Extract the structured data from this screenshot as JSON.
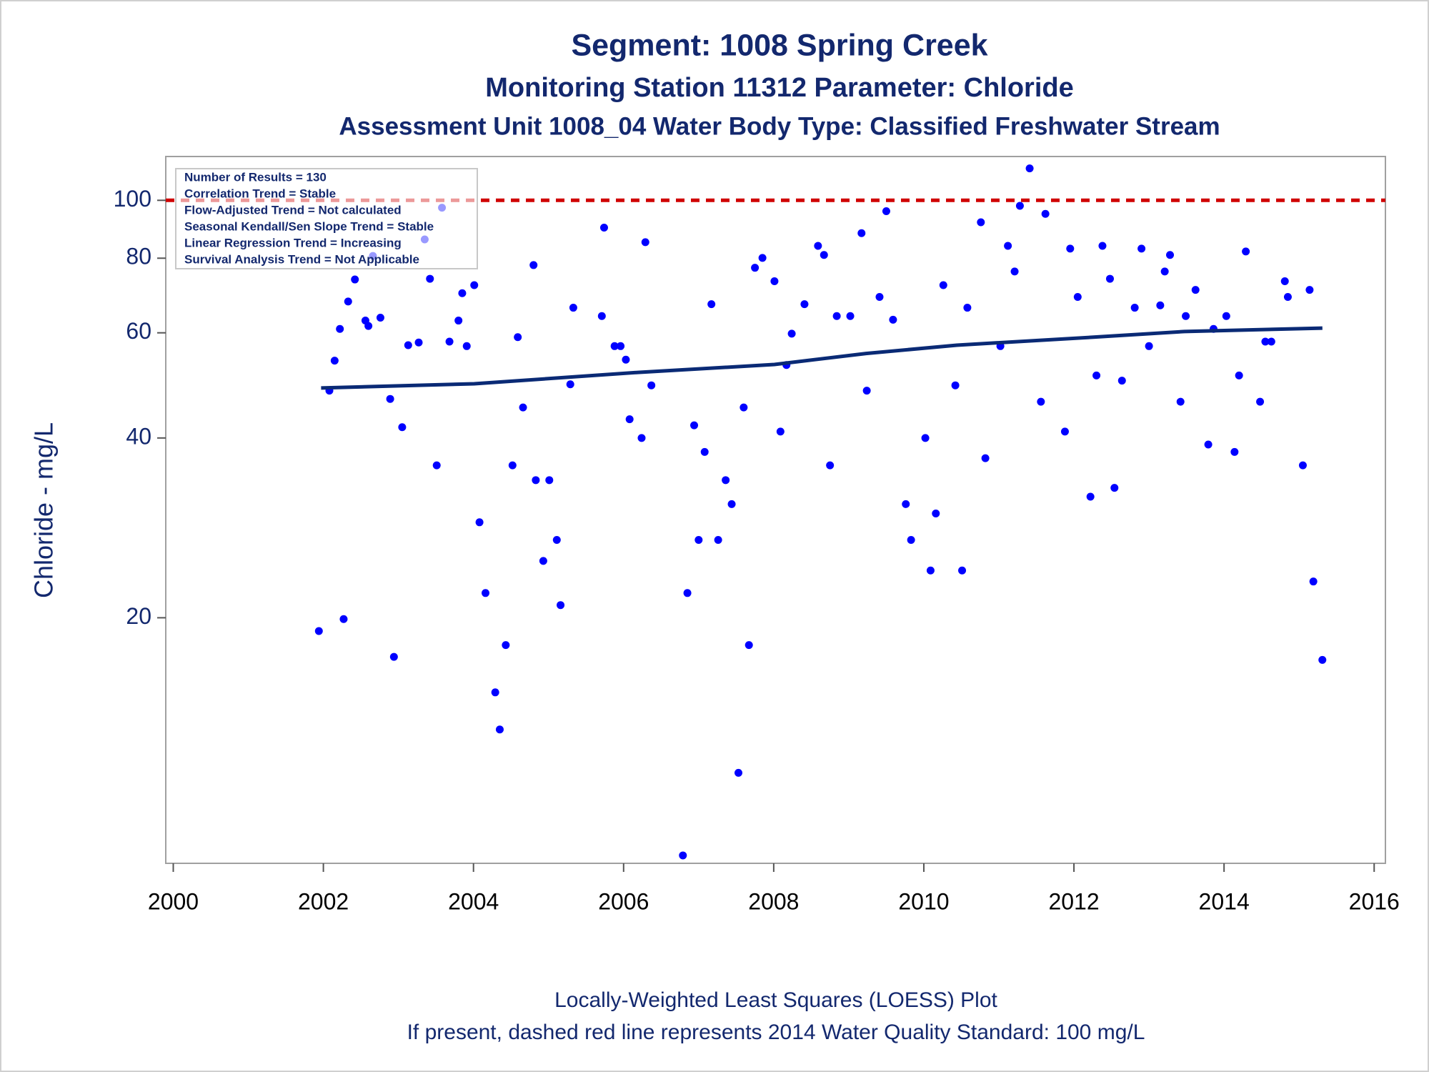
{
  "chart_data": {
    "type": "scatter",
    "title": "Segment: 1008  Spring Creek",
    "subtitles": [
      "Monitoring Station 11312 Parameter: Chloride",
      "Assessment Unit 1008_04   Water Body Type: Classified Freshwater Stream"
    ],
    "y_label": "Chloride - mg/L",
    "footnotes": [
      "Locally-Weighted Least Squares (LOESS) Plot",
      "If present, dashed red line represents 2014 Water Quality Standard: 100    mg/L"
    ],
    "stats": [
      "Number of Results = 130",
      "Correlation Trend = Stable",
      "Flow-Adjusted Trend = Not calculated",
      "Seasonal Kendall/Sen Slope Trend = Stable",
      "Linear Regression Trend = Increasing",
      "Survival Analysis Trend = Not Applicable"
    ],
    "log_y": true,
    "xlim": [
      1999.9,
      2016.15
    ],
    "ylim": [
      7.76,
      118.4
    ],
    "xticks": [
      2000,
      2002,
      2004,
      2006,
      2008,
      2010,
      2012,
      2014,
      2016
    ],
    "yticks": [
      20,
      40,
      60,
      80,
      100
    ],
    "color": "#0000ff",
    "x": [
      2001.94,
      2002.08,
      2002.15,
      2002.22,
      2002.27,
      2002.33,
      2002.42,
      2002.56,
      2002.6,
      2002.66,
      2002.76,
      2002.89,
      2002.94,
      2003.05,
      2003.13,
      2003.27,
      2003.35,
      2003.42,
      2003.51,
      2003.58,
      2003.68,
      2003.8,
      2003.85,
      2003.91,
      2004.01,
      2004.08,
      2004.16,
      2004.29,
      2004.35,
      2004.43,
      2004.52,
      2004.59,
      2004.66,
      2004.8,
      2004.83,
      2004.93,
      2005.01,
      2005.11,
      2005.16,
      2005.29,
      2005.33,
      2005.71,
      2005.74,
      2005.88,
      2005.96,
      2006.03,
      2006.08,
      2006.24,
      2006.29,
      2006.37,
      2006.79,
      2006.85,
      2006.94,
      2007.0,
      2007.08,
      2007.17,
      2007.26,
      2007.36,
      2007.44,
      2007.53,
      2007.6,
      2007.67,
      2007.75,
      2007.85,
      2008.01,
      2008.09,
      2008.17,
      2008.24,
      2008.41,
      2008.59,
      2008.67,
      2008.75,
      2008.84,
      2009.02,
      2009.17,
      2009.24,
      2009.41,
      2009.5,
      2009.59,
      2009.76,
      2009.83,
      2010.02,
      2010.09,
      2010.16,
      2010.26,
      2010.42,
      2010.51,
      2010.58,
      2010.76,
      2010.82,
      2011.02,
      2011.12,
      2011.21,
      2011.28,
      2011.41,
      2011.56,
      2011.62,
      2011.88,
      2011.95,
      2012.05,
      2012.22,
      2012.3,
      2012.38,
      2012.48,
      2012.54,
      2012.64,
      2012.81,
      2012.9,
      2013.0,
      2013.15,
      2013.21,
      2013.28,
      2013.42,
      2013.49,
      2013.62,
      2013.79,
      2013.86,
      2014.03,
      2014.14,
      2014.2,
      2014.29,
      2014.48,
      2014.55,
      2014.63,
      2014.81,
      2014.85,
      2015.05,
      2015.14,
      2015.19,
      2015.31
    ],
    "values": [
      19.0,
      48.0,
      53.9,
      60.9,
      19.9,
      67.7,
      73.7,
      62.9,
      61.6,
      80.7,
      63.6,
      46.5,
      17.2,
      41.7,
      57.2,
      57.8,
      86.0,
      73.9,
      36.0,
      97.2,
      58.0,
      62.9,
      69.9,
      57.0,
      72.1,
      28.9,
      22.0,
      15.0,
      13.0,
      18.0,
      36.0,
      59.0,
      45.0,
      77.9,
      34.0,
      24.9,
      34.0,
      27.0,
      21.0,
      49.2,
      66.1,
      64.0,
      90.0,
      57.0,
      57.0,
      54.1,
      43.0,
      40.0,
      85.1,
      49.0,
      8.0,
      22.0,
      42.0,
      27.0,
      37.9,
      67.0,
      27.0,
      34.0,
      31.0,
      11.0,
      45.0,
      18.0,
      77.1,
      80.1,
      73.2,
      41.0,
      53.0,
      59.8,
      67.0,
      83.9,
      81.0,
      36.0,
      64.0,
      64.0,
      88.1,
      48.0,
      68.9,
      95.9,
      63.1,
      31.0,
      27.0,
      40.0,
      24.0,
      29.9,
      72.1,
      49.0,
      24.0,
      66.1,
      91.9,
      37.0,
      57.0,
      83.9,
      76.0,
      97.9,
      113.1,
      46.0,
      94.9,
      41.0,
      83.0,
      68.9,
      31.9,
      50.9,
      83.9,
      73.9,
      33.0,
      49.9,
      66.1,
      83.0,
      57.0,
      66.7,
      76.0,
      81.0,
      46.0,
      64.0,
      70.8,
      39.0,
      60.9,
      64.0,
      37.9,
      50.9,
      82.1,
      46.0,
      58.0,
      58.0,
      73.2,
      68.9,
      36.0,
      70.8,
      23.0,
      17.0
    ],
    "trend": {
      "color": "#0a2a75",
      "x": [
        2001.97,
        2004.01,
        2006.19,
        2008.01,
        2009.23,
        2010.44,
        2012.26,
        2013.47,
        2015.31
      ],
      "values": [
        48.5,
        49.3,
        51.5,
        53.1,
        55.4,
        57.2,
        59.0,
        60.3,
        61.1
      ]
    },
    "reference_line": {
      "value": 100,
      "color": "#d00000"
    }
  }
}
